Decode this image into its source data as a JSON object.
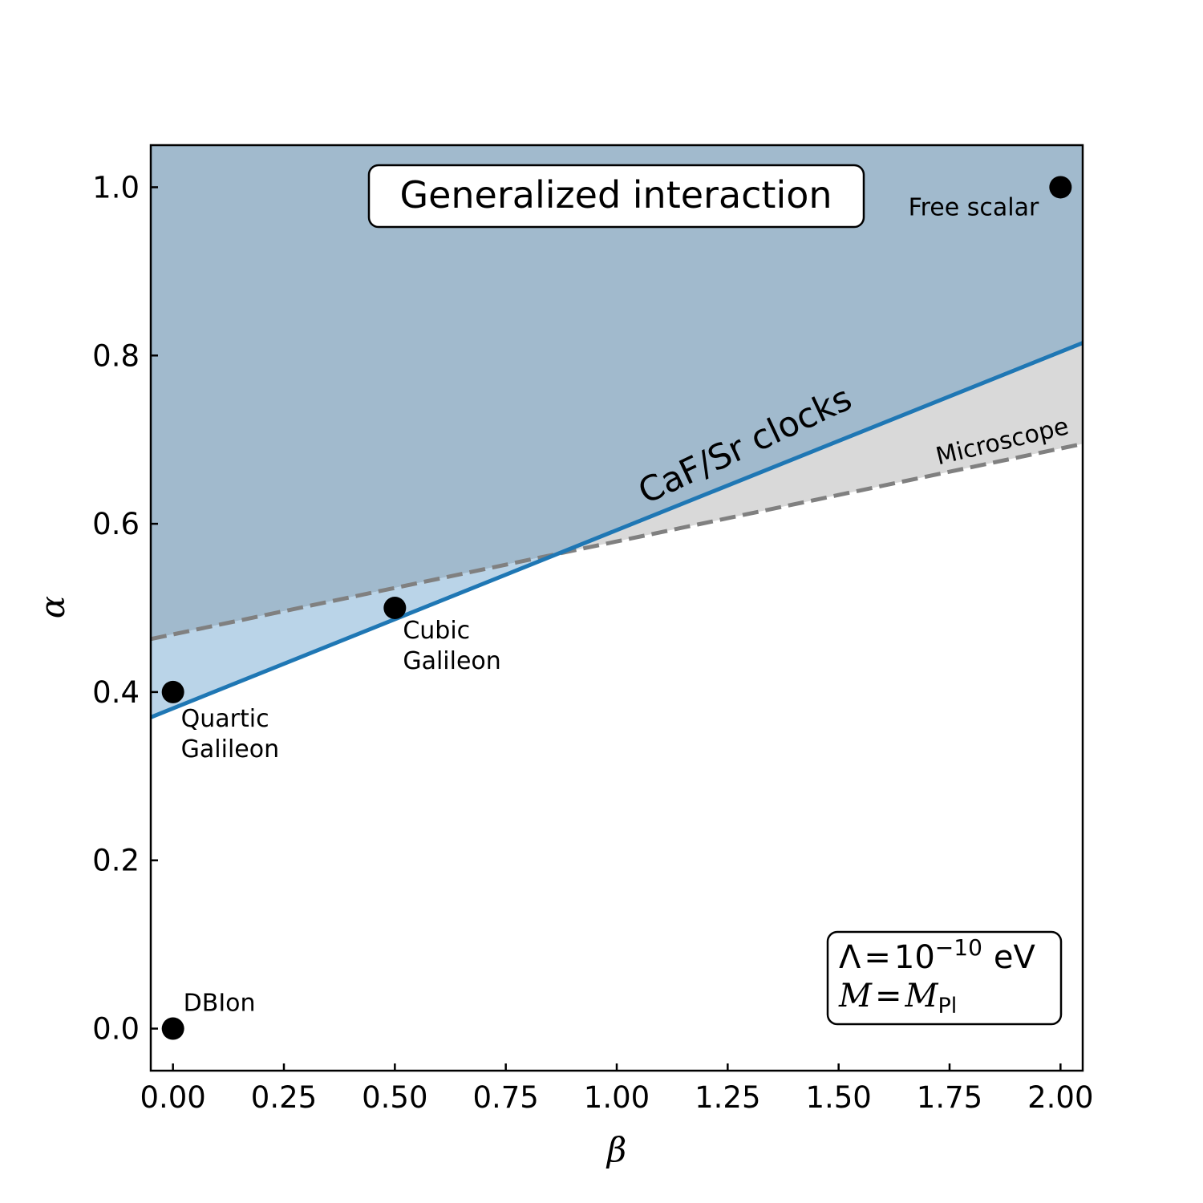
{
  "chart_data": {
    "type": "line",
    "title": "Generalized interaction",
    "xlabel": "β",
    "ylabel": "α",
    "xlim": [
      -0.05,
      2.05
    ],
    "ylim": [
      -0.05,
      1.05
    ],
    "xticks": [
      0.0,
      0.25,
      0.5,
      0.75,
      1.0,
      1.25,
      1.5,
      1.75,
      2.0
    ],
    "xtick_labels": [
      "0.00",
      "0.25",
      "0.50",
      "0.75",
      "1.00",
      "1.25",
      "1.50",
      "1.75",
      "2.00"
    ],
    "yticks": [
      0.0,
      0.2,
      0.4,
      0.6,
      0.8,
      1.0
    ],
    "ytick_labels": [
      "0.0",
      "0.2",
      "0.4",
      "0.6",
      "0.8",
      "1.0"
    ],
    "series": [
      {
        "name": "CaF/Sr clocks",
        "style": "solid",
        "color": "#1f77b4",
        "x": [
          -0.05,
          2.05
        ],
        "y": [
          0.37,
          0.815
        ]
      },
      {
        "name": "Microscope",
        "style": "dashed",
        "color": "#808080",
        "x": [
          -0.05,
          2.05
        ],
        "y": [
          0.463,
          0.695
        ]
      }
    ],
    "regions": [
      {
        "name": "excluded-both",
        "color": "#a1bacd"
      },
      {
        "name": "excluded-clocks-only",
        "color": "#bad4e8"
      },
      {
        "name": "excluded-microscope-only",
        "color": "#d9d9d9"
      }
    ],
    "points": [
      {
        "label": "Free scalar",
        "lines": [
          "Free scalar"
        ],
        "x": 2.0,
        "y": 1.0
      },
      {
        "label": "Cubic Galileon",
        "lines": [
          "Cubic",
          "Galileon"
        ],
        "x": 0.5,
        "y": 0.5
      },
      {
        "label": "Quartic Galileon",
        "lines": [
          "Quartic",
          "Galileon"
        ],
        "x": 0.0,
        "y": 0.4
      },
      {
        "label": "DBIon",
        "lines": [
          "DBIon"
        ],
        "x": 0.0,
        "y": 0.0
      }
    ],
    "parameters": {
      "lambda": {
        "symbol": "Λ",
        "value": "10",
        "exponent": "−10",
        "unit": "eV"
      },
      "mass": {
        "symbol": "M",
        "value_symbol": "M",
        "subscript": "Pl"
      }
    }
  }
}
